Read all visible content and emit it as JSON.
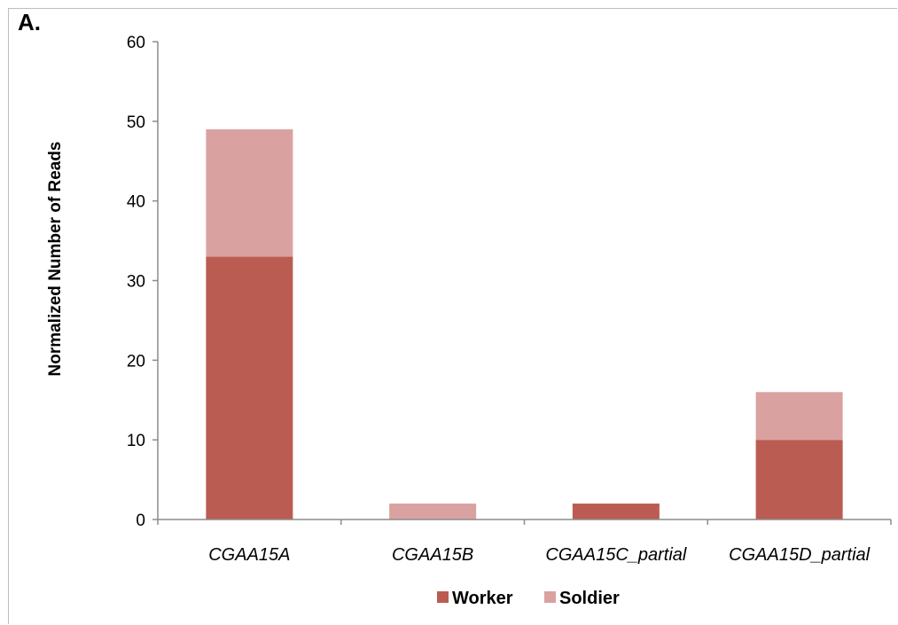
{
  "panel_label": "A.",
  "chart_data": {
    "type": "bar",
    "stacked": true,
    "categories": [
      "CGAA15A",
      "CGAA15B",
      "CGAA15C_partial",
      "CGAA15D_partial"
    ],
    "series": [
      {
        "name": "Worker",
        "color": "#bb5c52",
        "values": [
          33,
          0,
          2,
          10
        ]
      },
      {
        "name": "Soldier",
        "color": "#d9a2a0",
        "values": [
          16,
          2,
          0,
          6
        ]
      }
    ],
    "title": "",
    "xlabel": "",
    "ylabel": "Normalized Number of Reads",
    "ylim": [
      0,
      60
    ],
    "yticks": [
      "0",
      "10",
      "20",
      "30",
      "40",
      "50",
      "60"
    ],
    "grid": false,
    "legend_position": "bottom"
  }
}
